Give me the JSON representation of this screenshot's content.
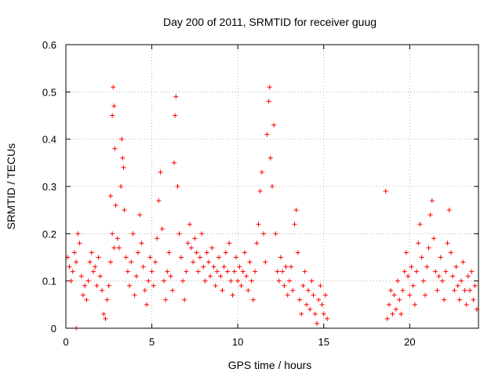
{
  "chart_data": {
    "type": "scatter",
    "title": "Day 200 of 2011, SRMTID for receiver guug",
    "xlabel": "GPS time / hours",
    "ylabel": "SRMTID / TECUs",
    "xlim": [
      0,
      24
    ],
    "ylim": [
      0,
      0.6
    ],
    "x_ticks": [
      0,
      5,
      10,
      15,
      20
    ],
    "x_tick_labels": [
      "0",
      "5",
      "10",
      "15",
      "20"
    ],
    "y_ticks": [
      0,
      0.1,
      0.2,
      0.3,
      0.4,
      0.5,
      0.6
    ],
    "y_tick_labels": [
      "0",
      "0.1",
      "0.2",
      "0.3",
      "0.4",
      "0.5",
      "0.6"
    ],
    "grid": true,
    "marker": "+",
    "series": [
      {
        "name": "SRMTID",
        "color": "#ff0000",
        "points": [
          [
            0.1,
            0.15
          ],
          [
            0.2,
            0.13
          ],
          [
            0.3,
            0.1
          ],
          [
            0.4,
            0.12
          ],
          [
            0.5,
            0.16
          ],
          [
            0.6,
            0.14
          ],
          [
            0.7,
            0.2
          ],
          [
            0.8,
            0.18
          ],
          [
            0.6,
            0.0
          ],
          [
            0.9,
            0.11
          ],
          [
            1.0,
            0.07
          ],
          [
            1.1,
            0.09
          ],
          [
            1.2,
            0.06
          ],
          [
            1.3,
            0.1
          ],
          [
            1.4,
            0.14
          ],
          [
            1.5,
            0.16
          ],
          [
            1.6,
            0.12
          ],
          [
            1.7,
            0.13
          ],
          [
            1.8,
            0.09
          ],
          [
            1.9,
            0.15
          ],
          [
            2.0,
            0.11
          ],
          [
            2.1,
            0.08
          ],
          [
            2.2,
            0.03
          ],
          [
            2.3,
            0.02
          ],
          [
            2.4,
            0.06
          ],
          [
            2.5,
            0.09
          ],
          [
            2.6,
            0.14
          ],
          [
            2.7,
            0.2
          ],
          [
            2.8,
            0.17
          ],
          [
            2.6,
            0.28
          ],
          [
            2.7,
            0.45
          ],
          [
            2.75,
            0.51
          ],
          [
            2.8,
            0.47
          ],
          [
            2.85,
            0.38
          ],
          [
            2.9,
            0.26
          ],
          [
            3.0,
            0.19
          ],
          [
            3.1,
            0.17
          ],
          [
            3.2,
            0.3
          ],
          [
            3.25,
            0.4
          ],
          [
            3.3,
            0.36
          ],
          [
            3.35,
            0.34
          ],
          [
            3.4,
            0.25
          ],
          [
            3.5,
            0.15
          ],
          [
            3.6,
            0.12
          ],
          [
            3.7,
            0.09
          ],
          [
            3.8,
            0.14
          ],
          [
            3.9,
            0.2
          ],
          [
            4.0,
            0.07
          ],
          [
            4.1,
            0.11
          ],
          [
            4.2,
            0.16
          ],
          [
            4.3,
            0.24
          ],
          [
            4.4,
            0.18
          ],
          [
            4.5,
            0.13
          ],
          [
            4.6,
            0.08
          ],
          [
            4.7,
            0.05
          ],
          [
            4.8,
            0.1
          ],
          [
            4.9,
            0.15
          ],
          [
            5.0,
            0.12
          ],
          [
            5.1,
            0.09
          ],
          [
            5.2,
            0.14
          ],
          [
            5.3,
            0.19
          ],
          [
            5.4,
            0.27
          ],
          [
            5.5,
            0.33
          ],
          [
            5.6,
            0.21
          ],
          [
            5.7,
            0.1
          ],
          [
            5.8,
            0.06
          ],
          [
            5.9,
            0.12
          ],
          [
            6.0,
            0.16
          ],
          [
            6.1,
            0.11
          ],
          [
            6.2,
            0.08
          ],
          [
            6.3,
            0.35
          ],
          [
            6.35,
            0.45
          ],
          [
            6.4,
            0.49
          ],
          [
            6.5,
            0.3
          ],
          [
            6.6,
            0.2
          ],
          [
            6.7,
            0.15
          ],
          [
            6.8,
            0.1
          ],
          [
            6.9,
            0.06
          ],
          [
            7.0,
            0.12
          ],
          [
            7.1,
            0.18
          ],
          [
            7.2,
            0.22
          ],
          [
            7.3,
            0.17
          ],
          [
            7.4,
            0.14
          ],
          [
            7.5,
            0.19
          ],
          [
            7.6,
            0.16
          ],
          [
            7.7,
            0.12
          ],
          [
            7.8,
            0.15
          ],
          [
            7.9,
            0.2
          ],
          [
            8.0,
            0.13
          ],
          [
            8.1,
            0.1
          ],
          [
            8.2,
            0.16
          ],
          [
            8.3,
            0.14
          ],
          [
            8.4,
            0.11
          ],
          [
            8.5,
            0.17
          ],
          [
            8.6,
            0.13
          ],
          [
            8.7,
            0.09
          ],
          [
            8.8,
            0.12
          ],
          [
            8.9,
            0.15
          ],
          [
            9.0,
            0.11
          ],
          [
            9.1,
            0.08
          ],
          [
            9.2,
            0.13
          ],
          [
            9.3,
            0.16
          ],
          [
            9.4,
            0.12
          ],
          [
            9.5,
            0.18
          ],
          [
            9.6,
            0.1
          ],
          [
            9.7,
            0.07
          ],
          [
            9.8,
            0.12
          ],
          [
            9.9,
            0.15
          ],
          [
            10.0,
            0.1
          ],
          [
            10.1,
            0.13
          ],
          [
            10.2,
            0.09
          ],
          [
            10.3,
            0.12
          ],
          [
            10.4,
            0.16
          ],
          [
            10.5,
            0.11
          ],
          [
            10.6,
            0.08
          ],
          [
            10.7,
            0.14
          ],
          [
            10.8,
            0.1
          ],
          [
            10.9,
            0.06
          ],
          [
            11.0,
            0.12
          ],
          [
            11.1,
            0.18
          ],
          [
            11.2,
            0.22
          ],
          [
            11.3,
            0.29
          ],
          [
            11.4,
            0.33
          ],
          [
            11.5,
            0.2
          ],
          [
            11.6,
            0.14
          ],
          [
            11.7,
            0.41
          ],
          [
            11.8,
            0.48
          ],
          [
            11.85,
            0.51
          ],
          [
            11.9,
            0.36
          ],
          [
            12.0,
            0.3
          ],
          [
            12.1,
            0.43
          ],
          [
            12.2,
            0.2
          ],
          [
            12.3,
            0.12
          ],
          [
            12.4,
            0.1
          ],
          [
            12.5,
            0.15
          ],
          [
            12.6,
            0.12
          ],
          [
            12.7,
            0.09
          ],
          [
            12.8,
            0.13
          ],
          [
            12.9,
            0.07
          ],
          [
            13.0,
            0.1
          ],
          [
            13.1,
            0.13
          ],
          [
            13.2,
            0.08
          ],
          [
            13.3,
            0.22
          ],
          [
            13.4,
            0.25
          ],
          [
            13.5,
            0.16
          ],
          [
            13.6,
            0.06
          ],
          [
            13.7,
            0.03
          ],
          [
            13.8,
            0.09
          ],
          [
            13.9,
            0.12
          ],
          [
            14.0,
            0.05
          ],
          [
            14.1,
            0.08
          ],
          [
            14.2,
            0.04
          ],
          [
            14.3,
            0.1
          ],
          [
            14.4,
            0.07
          ],
          [
            14.5,
            0.03
          ],
          [
            14.6,
            0.01
          ],
          [
            14.7,
            0.06
          ],
          [
            14.8,
            0.09
          ],
          [
            14.9,
            0.05
          ],
          [
            15.0,
            0.03
          ],
          [
            15.1,
            0.07
          ],
          [
            15.2,
            0.02
          ],
          [
            18.6,
            0.29
          ],
          [
            18.7,
            0.02
          ],
          [
            18.8,
            0.05
          ],
          [
            18.9,
            0.08
          ],
          [
            19.0,
            0.03
          ],
          [
            19.1,
            0.07
          ],
          [
            19.2,
            0.04
          ],
          [
            19.3,
            0.1
          ],
          [
            19.4,
            0.06
          ],
          [
            19.5,
            0.03
          ],
          [
            19.6,
            0.08
          ],
          [
            19.7,
            0.12
          ],
          [
            19.8,
            0.16
          ],
          [
            19.9,
            0.11
          ],
          [
            20.0,
            0.07
          ],
          [
            20.1,
            0.13
          ],
          [
            20.2,
            0.09
          ],
          [
            20.3,
            0.05
          ],
          [
            20.4,
            0.12
          ],
          [
            20.5,
            0.18
          ],
          [
            20.6,
            0.22
          ],
          [
            20.7,
            0.15
          ],
          [
            20.8,
            0.1
          ],
          [
            20.9,
            0.07
          ],
          [
            21.0,
            0.13
          ],
          [
            21.1,
            0.17
          ],
          [
            21.2,
            0.24
          ],
          [
            21.3,
            0.27
          ],
          [
            21.4,
            0.19
          ],
          [
            21.5,
            0.12
          ],
          [
            21.6,
            0.08
          ],
          [
            21.7,
            0.11
          ],
          [
            21.8,
            0.15
          ],
          [
            21.9,
            0.1
          ],
          [
            22.0,
            0.06
          ],
          [
            22.1,
            0.12
          ],
          [
            22.2,
            0.18
          ],
          [
            22.3,
            0.25
          ],
          [
            22.4,
            0.16
          ],
          [
            22.5,
            0.11
          ],
          [
            22.6,
            0.08
          ],
          [
            22.7,
            0.13
          ],
          [
            22.8,
            0.09
          ],
          [
            22.9,
            0.06
          ],
          [
            23.0,
            0.1
          ],
          [
            23.1,
            0.14
          ],
          [
            23.2,
            0.08
          ],
          [
            23.3,
            0.05
          ],
          [
            23.4,
            0.11
          ],
          [
            23.5,
            0.08
          ],
          [
            23.6,
            0.12
          ],
          [
            23.7,
            0.06
          ],
          [
            23.8,
            0.09
          ],
          [
            23.9,
            0.04
          ]
        ]
      }
    ]
  }
}
